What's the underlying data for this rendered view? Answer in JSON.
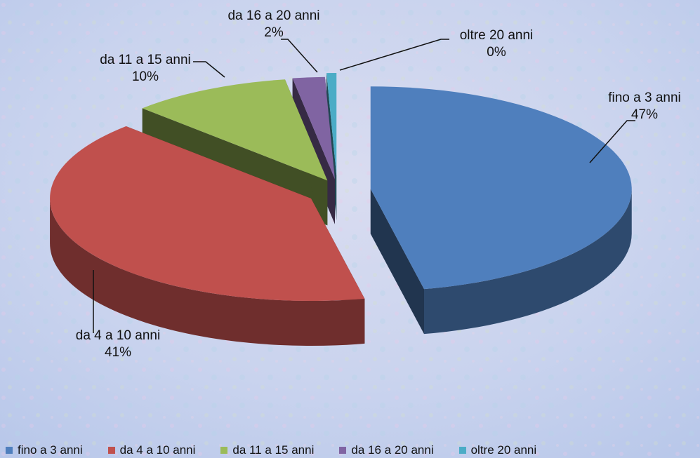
{
  "chart_data": {
    "type": "pie",
    "style": "3d-exploded",
    "categories": [
      "fino a 3 anni",
      "da  4 a 10 anni",
      "da 11 a 15 anni",
      "da 16 a 20 anni",
      "oltre 20 anni"
    ],
    "values": [
      47,
      41,
      10,
      2,
      0
    ],
    "percent_labels": [
      "47%",
      "41%",
      "10%",
      "2%",
      "0%"
    ],
    "colors": [
      "#4f7fbd",
      "#c0504d",
      "#9bbb59",
      "#8064a2",
      "#4bacc6"
    ],
    "legend_position": "bottom"
  }
}
